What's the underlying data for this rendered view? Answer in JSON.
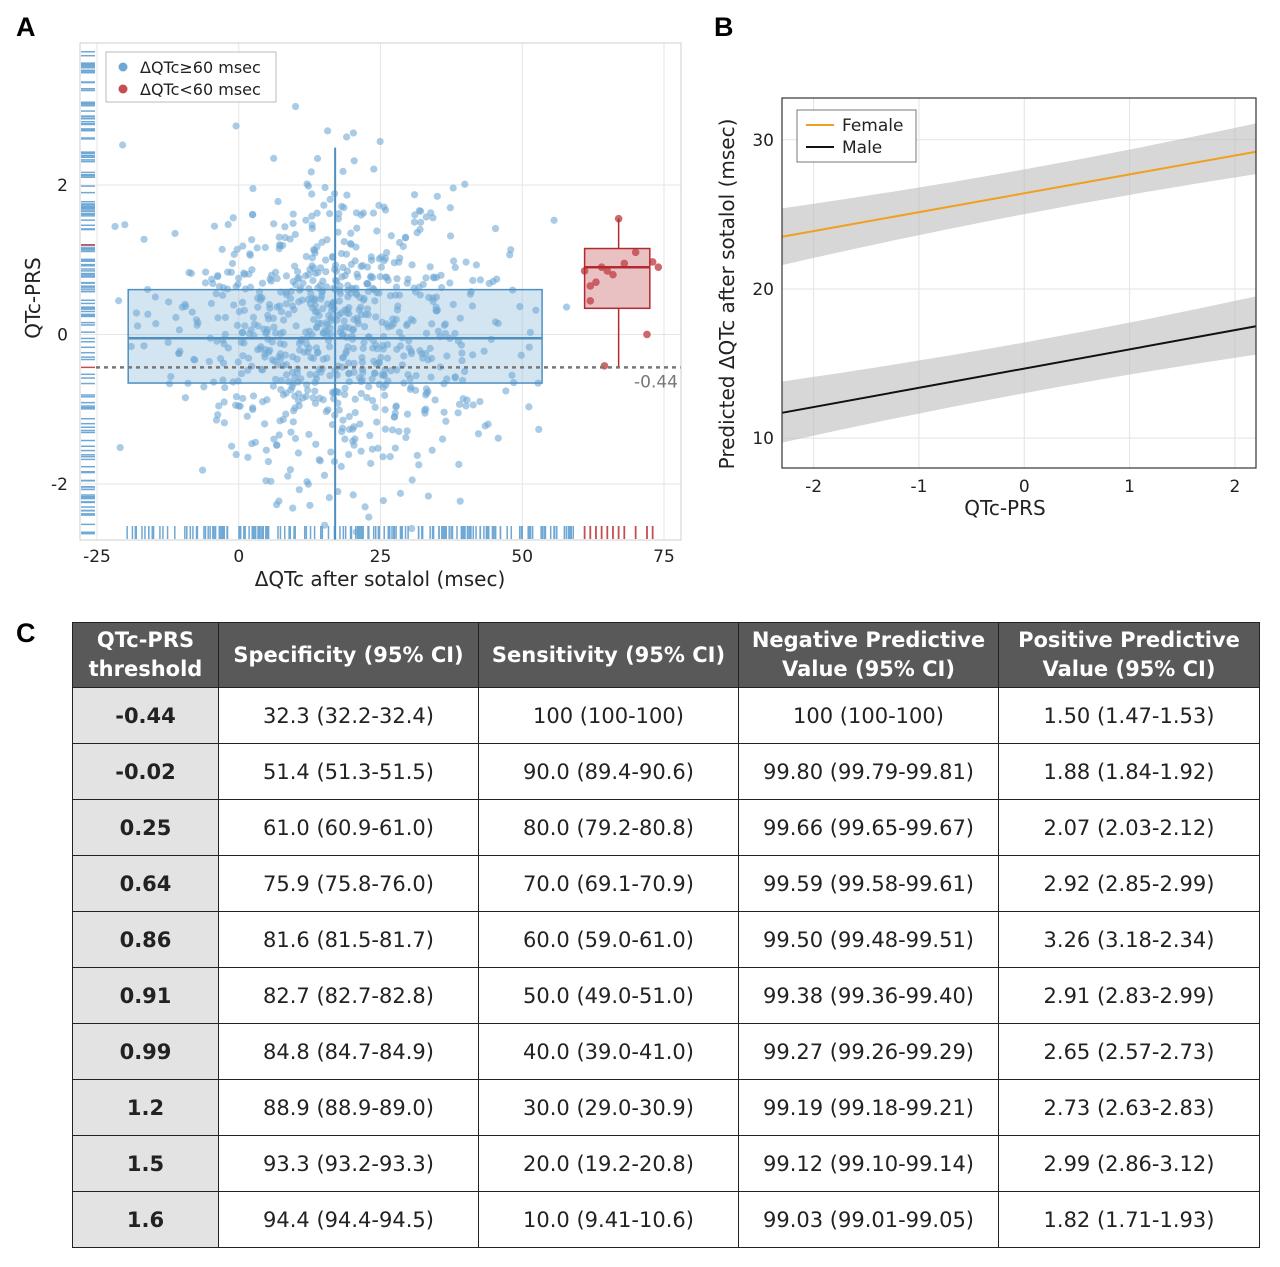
{
  "panels": {
    "a": "A",
    "b": "B",
    "c": "C"
  },
  "chart_data": [
    {
      "panel": "A",
      "type": "scatter",
      "xlabel": "ΔQTc after sotalol (msec)",
      "ylabel": "QTc-PRS",
      "xlim": [
        -28,
        78
      ],
      "ylim": [
        -2.75,
        3.9
      ],
      "xticks": [
        -25,
        0,
        25,
        50,
        75
      ],
      "yticks": [
        -2,
        0,
        2
      ],
      "grid": true,
      "legend_position": "top-left",
      "threshold_line": {
        "y": -0.44,
        "label": "-0.44"
      },
      "series": [
        {
          "name": "ΔQTc≥60 msec",
          "color": "#6fa8d4",
          "box": {
            "x_min": -19.5,
            "q1": -0.65,
            "median": -0.05,
            "q3": 0.6,
            "x_max": 53.5,
            "center_x": 17,
            "whisker_low": -2.75,
            "whisker_high": 2.5
          }
        },
        {
          "name": "ΔQTc<60 msec",
          "color": "#c44e52",
          "box": {
            "x_min": 61,
            "q1": 0.35,
            "median": 0.9,
            "q3": 1.15,
            "x_max": 72.5,
            "center_x": 67,
            "whisker_low": -0.45,
            "whisker_high": 1.55
          },
          "points": [
            [
              61,
              0.85
            ],
            [
              62,
              0.65
            ],
            [
              63,
              0.7
            ],
            [
              64,
              0.9
            ],
            [
              65,
              0.85
            ],
            [
              66,
              0.8
            ],
            [
              67,
              1.55
            ],
            [
              68,
              0.95
            ],
            [
              70,
              1.1
            ],
            [
              72,
              0.0
            ],
            [
              73,
              0.97
            ],
            [
              74,
              0.9
            ],
            [
              64.5,
              -0.42
            ],
            [
              62,
              0.45
            ]
          ]
        }
      ]
    },
    {
      "panel": "B",
      "type": "line",
      "xlabel": "QTc-PRS",
      "ylabel": "Predicted  ΔQTc after sotalol (msec)",
      "xlim": [
        -2.3,
        2.2
      ],
      "ylim": [
        8,
        32.8
      ],
      "xticks": [
        -2,
        -1,
        0,
        1,
        2
      ],
      "yticks": [
        10,
        20,
        30
      ],
      "grid": true,
      "legend_position": "top-left",
      "series": [
        {
          "name": "Female",
          "color": "#f0a020",
          "x": [
            -2.3,
            2.2
          ],
          "y": [
            23.5,
            29.2
          ],
          "ci_low": [
            21.6,
            27.7
          ],
          "ci_high": [
            25.4,
            31.1
          ]
        },
        {
          "name": "Male",
          "color": "#111111",
          "x": [
            -2.3,
            2.2
          ],
          "y": [
            11.7,
            17.5
          ],
          "ci_low": [
            9.7,
            15.6
          ],
          "ci_high": [
            13.8,
            19.5
          ]
        }
      ]
    },
    {
      "panel": "C",
      "type": "table",
      "columns": [
        "QTc-PRS threshold",
        "Specificity (95% CI)",
        "Sensitivity (95% CI)",
        "Negative Predictive Value (95% CI)",
        "Positive Predictive Value (95% CI)"
      ],
      "rows": [
        [
          "-0.44",
          "32.3 (32.2-32.4)",
          "100 (100-100)",
          "100 (100-100)",
          "1.50 (1.47-1.53)"
        ],
        [
          "-0.02",
          "51.4 (51.3-51.5)",
          "90.0 (89.4-90.6)",
          "99.80 (99.79-99.81)",
          "1.88 (1.84-1.92)"
        ],
        [
          "0.25",
          "61.0 (60.9-61.0)",
          "80.0 (79.2-80.8)",
          "99.66 (99.65-99.67)",
          "2.07 (2.03-2.12)"
        ],
        [
          "0.64",
          "75.9 (75.8-76.0)",
          "70.0 (69.1-70.9)",
          "99.59 (99.58-99.61)",
          "2.92 (2.85-2.99)"
        ],
        [
          "0.86",
          "81.6 (81.5-81.7)",
          "60.0 (59.0-61.0)",
          "99.50 (99.48-99.51)",
          "3.26 (3.18-2.34)"
        ],
        [
          "0.91",
          "82.7 (82.7-82.8)",
          "50.0 (49.0-51.0)",
          "99.38 (99.36-99.40)",
          "2.91 (2.83-2.99)"
        ],
        [
          "0.99",
          "84.8 (84.7-84.9)",
          "40.0 (39.0-41.0)",
          "99.27 (99.26-99.29)",
          "2.65 (2.57-2.73)"
        ],
        [
          "1.2",
          "88.9 (88.9-89.0)",
          "30.0 (29.0-30.9)",
          "99.19 (99.18-99.21)",
          "2.73 (2.63-2.83)"
        ],
        [
          "1.5",
          "93.3 (93.2-93.3)",
          "20.0 (19.2-20.8)",
          "99.12 (99.10-99.14)",
          "2.99 (2.86-3.12)"
        ],
        [
          "1.6",
          "94.4 (94.4-94.5)",
          "10.0 (9.41-10.6)",
          "99.03 (99.01-99.05)",
          "1.82 (1.71-1.93)"
        ]
      ]
    }
  ]
}
